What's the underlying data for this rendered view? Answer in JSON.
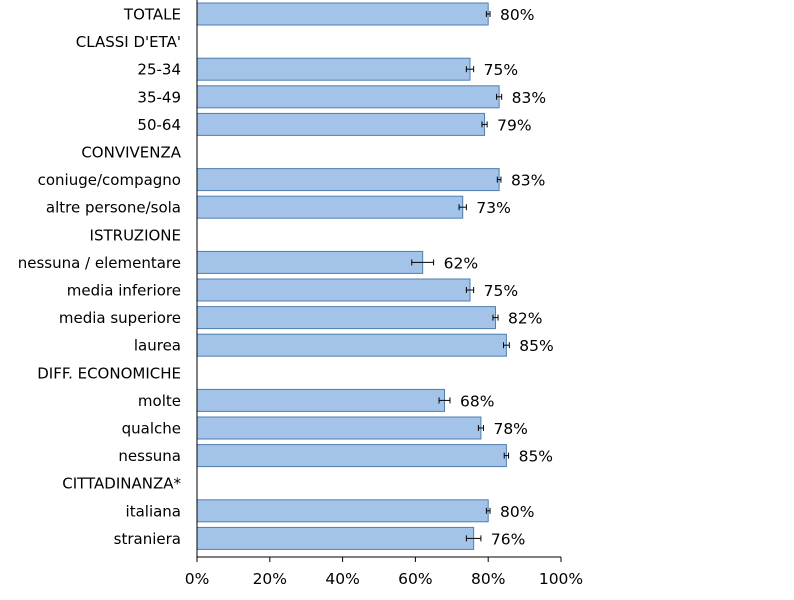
{
  "chart_data": {
    "type": "bar",
    "orientation": "horizontal",
    "rows": [
      {
        "label": "TOTALE",
        "value": 80,
        "value_label": "80%",
        "err": 0.5
      },
      {
        "label": "CLASSI D'ETA'",
        "header": true
      },
      {
        "label": "25-34",
        "value": 75,
        "value_label": "75%",
        "err": 1.0
      },
      {
        "label": "35-49",
        "value": 83,
        "value_label": "83%",
        "err": 0.7
      },
      {
        "label": "50-64",
        "value": 79,
        "value_label": "79%",
        "err": 0.7
      },
      {
        "label": "CONVIVENZA",
        "header": true
      },
      {
        "label": "coniuge/compagno",
        "value": 83,
        "value_label": "83%",
        "err": 0.5
      },
      {
        "label": "altre persone/sola",
        "value": 73,
        "value_label": "73%",
        "err": 1.0
      },
      {
        "label": "ISTRUZIONE",
        "header": true
      },
      {
        "label": "nessuna / elementare",
        "value": 62,
        "value_label": "62%",
        "err": 3.0
      },
      {
        "label": "media inferiore",
        "value": 75,
        "value_label": "75%",
        "err": 1.0
      },
      {
        "label": "media superiore",
        "value": 82,
        "value_label": "82%",
        "err": 0.7
      },
      {
        "label": "laurea",
        "value": 85,
        "value_label": "85%",
        "err": 0.8
      },
      {
        "label": "DIFF. ECONOMICHE",
        "header": true
      },
      {
        "label": "molte",
        "value": 68,
        "value_label": "68%",
        "err": 1.5
      },
      {
        "label": "qualche",
        "value": 78,
        "value_label": "78%",
        "err": 0.7
      },
      {
        "label": "nessuna",
        "value": 85,
        "value_label": "85%",
        "err": 0.6
      },
      {
        "label": "CITTADINANZA*",
        "header": true
      },
      {
        "label": "italiana",
        "value": 80,
        "value_label": "80%",
        "err": 0.5
      },
      {
        "label": "straniera",
        "value": 76,
        "value_label": "76%",
        "err": 2.0
      }
    ],
    "xlim": [
      0,
      100
    ],
    "xticks": [
      "0%",
      "20%",
      "40%",
      "60%",
      "80%",
      "100%"
    ],
    "error_bars": true,
    "grid": false,
    "bar_color": "#a3c4e8",
    "bar_border_color": "#4f7db0"
  }
}
